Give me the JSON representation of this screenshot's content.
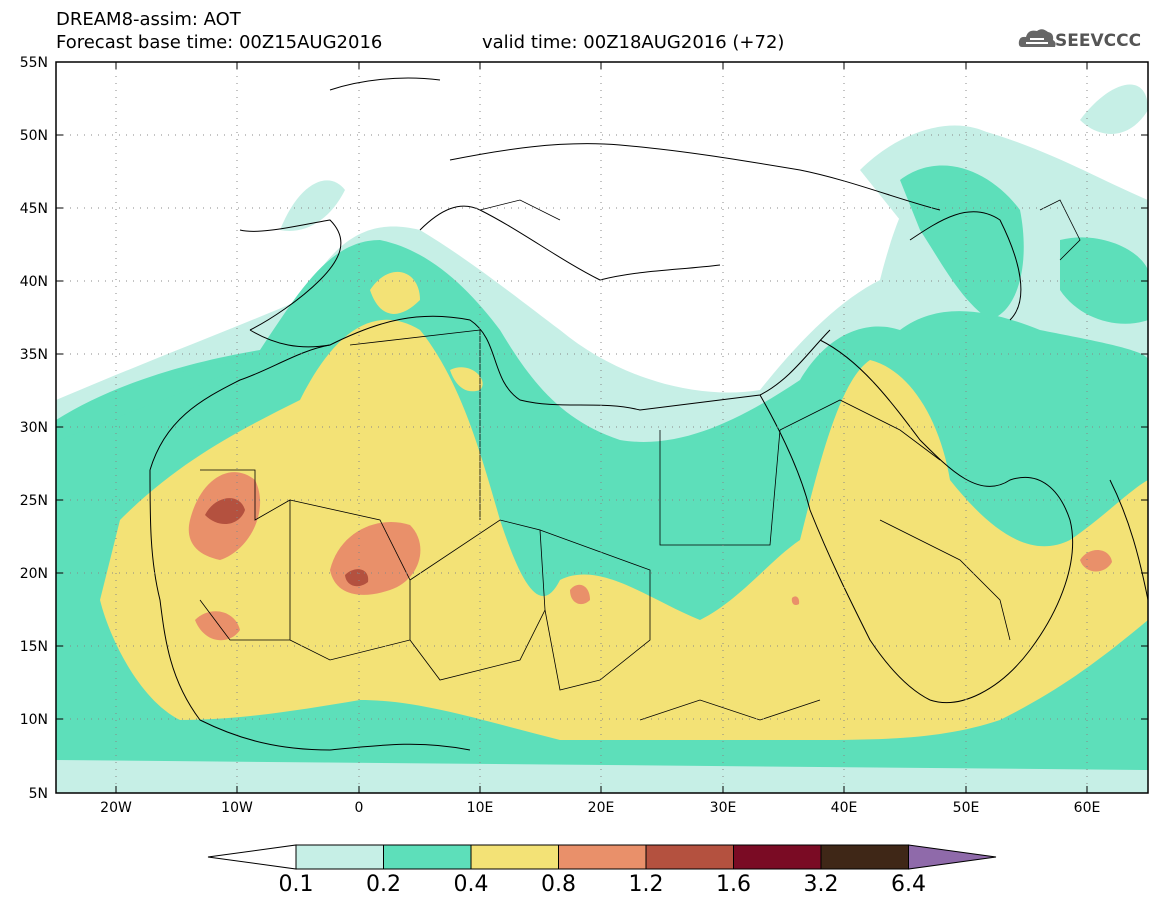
{
  "header": {
    "line1": "DREAM8-assim: AOT",
    "line2_left": "Forecast base time: 00Z15AUG2016",
    "line2_right": "valid time: 00Z18AUG2016 (+72)"
  },
  "logo": {
    "text": "SEEVCCC",
    "icon": "cloud-icon"
  },
  "map": {
    "lat_labels": [
      "55N",
      "50N",
      "45N",
      "40N",
      "35N",
      "30N",
      "25N",
      "20N",
      "15N",
      "10N",
      "5N"
    ],
    "lon_labels": [
      "20W",
      "10W",
      "0",
      "10E",
      "20E",
      "30E",
      "40E",
      "50E",
      "60E"
    ],
    "extent": {
      "lon": [
        -25,
        65
      ],
      "lat": [
        5,
        55
      ]
    }
  },
  "colorbar": {
    "levels": [
      "0.1",
      "0.2",
      "0.4",
      "0.8",
      "1.2",
      "1.6",
      "3.2",
      "6.4"
    ],
    "colors": [
      "#c6efe6",
      "#5ddfba",
      "#f3e276",
      "#e9906a",
      "#b4513f",
      "#7a0b24",
      "#3f2717",
      "#8f6aaa"
    ]
  }
}
